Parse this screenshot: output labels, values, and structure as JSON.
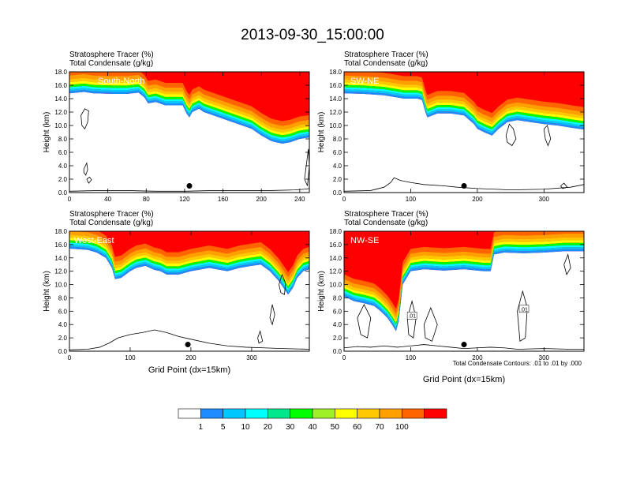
{
  "figure": {
    "title": "2013-09-30_15:00:00",
    "contour_note": "Total Condensate Contours: .01 to .01 by .000",
    "contour_label": ".01"
  },
  "colorbar": {
    "colors": [
      "#ffffff",
      "#1e8cff",
      "#00c8ff",
      "#00ffff",
      "#00e88c",
      "#00ff00",
      "#a0f028",
      "#ffff00",
      "#ffc800",
      "#ffa000",
      "#ff6400",
      "#ff0000"
    ],
    "labels": [
      "1",
      "5",
      "10",
      "20",
      "30",
      "40",
      "50",
      "60",
      "70",
      "100"
    ]
  },
  "chart_data": [
    {
      "type": "heatmap",
      "name": "South-North",
      "line1": "Stratosphere Tracer   (%)",
      "line2": "Total Condensate   (g/kg)",
      "ylabel": "Height (km)",
      "xlabel": "",
      "xlim": [
        0,
        250
      ],
      "ylim": [
        0,
        18
      ],
      "xticks": [
        "0",
        "40",
        "80",
        "120",
        "160",
        "200",
        "240"
      ],
      "yticks": [
        "0.0",
        "2.0",
        "4.0",
        "6.0",
        "8.0",
        "10.0",
        "12.0",
        "14.0",
        "16.0",
        "18.0"
      ],
      "marker_x": 125,
      "tracer_boundary": [
        [
          0,
          14.8
        ],
        [
          15,
          15.0
        ],
        [
          25,
          14.8
        ],
        [
          45,
          14.7
        ],
        [
          60,
          14.7
        ],
        [
          72,
          14.9
        ],
        [
          78,
          14.2
        ],
        [
          82,
          13.3
        ],
        [
          90,
          13.5
        ],
        [
          100,
          13.0
        ],
        [
          110,
          13.0
        ],
        [
          118,
          13.0
        ],
        [
          122,
          11.8
        ],
        [
          125,
          11.2
        ],
        [
          128,
          12.0
        ],
        [
          135,
          12.5
        ],
        [
          140,
          12.0
        ],
        [
          150,
          11.5
        ],
        [
          160,
          11.0
        ],
        [
          170,
          10.5
        ],
        [
          180,
          10.0
        ],
        [
          190,
          9.5
        ],
        [
          200,
          8.5
        ],
        [
          210,
          7.7
        ],
        [
          215,
          7.5
        ],
        [
          222,
          7.3
        ],
        [
          230,
          7.5
        ],
        [
          240,
          8.0
        ],
        [
          250,
          8.2
        ]
      ],
      "terrain": [
        [
          0,
          0.2
        ],
        [
          30,
          0.3
        ],
        [
          60,
          0.3
        ],
        [
          90,
          0.2
        ],
        [
          120,
          0.2
        ],
        [
          150,
          0.3
        ],
        [
          180,
          0.3
        ],
        [
          210,
          0.3
        ],
        [
          235,
          0.4
        ],
        [
          245,
          0.5
        ],
        [
          250,
          0.6
        ]
      ],
      "contours": [
        [
          [
            12,
            11.5
          ],
          [
            16,
            12.5
          ],
          [
            20,
            12.2
          ],
          [
            19,
            10.5
          ],
          [
            16,
            9.5
          ],
          [
            13,
            10.0
          ],
          [
            12,
            11.5
          ]
        ],
        [
          [
            15,
            3.5
          ],
          [
            18,
            4.4
          ],
          [
            19,
            3.4
          ],
          [
            17,
            2.6
          ],
          [
            15,
            3.0
          ],
          [
            15,
            3.5
          ]
        ],
        [
          [
            18,
            2.0
          ],
          [
            21,
            2.3
          ],
          [
            23,
            1.9
          ],
          [
            20,
            1.4
          ],
          [
            18,
            2.0
          ]
        ],
        [
          [
            245,
            2.0
          ],
          [
            249,
            6.5
          ],
          [
            250,
            4.0
          ],
          [
            248,
            1.0
          ],
          [
            245,
            2.0
          ]
        ]
      ]
    },
    {
      "type": "heatmap",
      "name": "SW-NE",
      "line1": "Stratosphere Tracer   (%)",
      "line2": "Total Condensate   (g/kg)",
      "ylabel": "Height (km)",
      "xlabel": "",
      "xlim": [
        0,
        360
      ],
      "ylim": [
        0,
        18
      ],
      "xticks": [
        "0",
        "100",
        "200",
        "300"
      ],
      "yticks": [
        "0.0",
        "2.0",
        "4.0",
        "6.0",
        "8.0",
        "10.0",
        "12.0",
        "14.0",
        "16.0",
        "18.0"
      ],
      "marker_x": 180,
      "tracer_boundary": [
        [
          0,
          14.8
        ],
        [
          30,
          14.7
        ],
        [
          60,
          14.5
        ],
        [
          90,
          14.0
        ],
        [
          110,
          14.0
        ],
        [
          117,
          13.8
        ],
        [
          122,
          12.0
        ],
        [
          125,
          11.2
        ],
        [
          140,
          11.8
        ],
        [
          160,
          11.8
        ],
        [
          180,
          11.5
        ],
        [
          195,
          10.2
        ],
        [
          200,
          9.5
        ],
        [
          210,
          9.0
        ],
        [
          222,
          8.5
        ],
        [
          232,
          9.5
        ],
        [
          245,
          10.5
        ],
        [
          260,
          10.8
        ],
        [
          280,
          10.5
        ],
        [
          300,
          10.2
        ],
        [
          320,
          10.0
        ],
        [
          345,
          9.6
        ],
        [
          360,
          9.4
        ]
      ],
      "terrain": [
        [
          0,
          0.2
        ],
        [
          40,
          0.3
        ],
        [
          60,
          0.8
        ],
        [
          70,
          1.5
        ],
        [
          75,
          2.2
        ],
        [
          85,
          1.8
        ],
        [
          100,
          1.5
        ],
        [
          120,
          1.2
        ],
        [
          150,
          1.0
        ],
        [
          170,
          0.8
        ],
        [
          200,
          0.6
        ],
        [
          250,
          0.4
        ],
        [
          300,
          0.5
        ],
        [
          340,
          0.8
        ],
        [
          360,
          1.2
        ]
      ],
      "contours": [
        [
          [
            243,
            8.5
          ],
          [
            248,
            10.2
          ],
          [
            254,
            9.5
          ],
          [
            258,
            8.0
          ],
          [
            252,
            7.0
          ],
          [
            245,
            7.5
          ],
          [
            243,
            8.5
          ]
        ],
        [
          [
            300,
            9.5
          ],
          [
            305,
            10.0
          ],
          [
            310,
            8.0
          ],
          [
            306,
            7.0
          ],
          [
            302,
            8.0
          ],
          [
            300,
            9.5
          ]
        ],
        [
          [
            325,
            1.0
          ],
          [
            330,
            1.4
          ],
          [
            335,
            0.8
          ],
          [
            328,
            0.6
          ],
          [
            325,
            1.0
          ]
        ]
      ]
    },
    {
      "type": "heatmap",
      "name": "West-East",
      "line1": "Stratosphere Tracer   (%)",
      "line2": "Total Condensate   (g/kg)",
      "ylabel": "Height (km)",
      "xlabel": "Grid Point (dx=15km)",
      "xlim": [
        0,
        395
      ],
      "ylim": [
        0,
        18
      ],
      "xticks": [
        "0",
        "100",
        "200",
        "300"
      ],
      "yticks": [
        "0.0",
        "2.0",
        "4.0",
        "6.0",
        "8.0",
        "10.0",
        "12.0",
        "14.0",
        "16.0",
        "18.0"
      ],
      "marker_x": 195,
      "tracer_boundary": [
        [
          0,
          15.4
        ],
        [
          30,
          15.2
        ],
        [
          45,
          14.8
        ],
        [
          60,
          14.0
        ],
        [
          70,
          12.5
        ],
        [
          75,
          10.8
        ],
        [
          85,
          11.0
        ],
        [
          100,
          12.0
        ],
        [
          110,
          12.5
        ],
        [
          125,
          12.8
        ],
        [
          140,
          12.2
        ],
        [
          150,
          12.0
        ],
        [
          160,
          11.5
        ],
        [
          180,
          11.5
        ],
        [
          200,
          12.0
        ],
        [
          230,
          12.5
        ],
        [
          260,
          12.0
        ],
        [
          280,
          12.5
        ],
        [
          300,
          12.8
        ],
        [
          315,
          13.0
        ],
        [
          330,
          12.0
        ],
        [
          345,
          10.5
        ],
        [
          360,
          8.5
        ],
        [
          368,
          9.5
        ],
        [
          375,
          11.0
        ],
        [
          385,
          12.0
        ],
        [
          395,
          12.3
        ]
      ],
      "terrain": [
        [
          0,
          0.2
        ],
        [
          30,
          0.3
        ],
        [
          50,
          0.6
        ],
        [
          65,
          1.2
        ],
        [
          80,
          2.0
        ],
        [
          100,
          2.5
        ],
        [
          120,
          2.8
        ],
        [
          140,
          3.2
        ],
        [
          160,
          2.8
        ],
        [
          180,
          2.2
        ],
        [
          200,
          1.8
        ],
        [
          230,
          1.2
        ],
        [
          260,
          0.8
        ],
        [
          290,
          0.6
        ],
        [
          320,
          0.5
        ],
        [
          350,
          0.4
        ],
        [
          395,
          0.3
        ]
      ],
      "contours": [
        [
          [
            345,
            10.0
          ],
          [
            350,
            11.5
          ],
          [
            356,
            10.2
          ],
          [
            354,
            8.5
          ],
          [
            348,
            8.8
          ],
          [
            345,
            10.0
          ]
        ],
        [
          [
            330,
            5.0
          ],
          [
            334,
            7.0
          ],
          [
            338,
            5.5
          ],
          [
            334,
            4.0
          ],
          [
            330,
            5.0
          ]
        ],
        [
          [
            310,
            2.0
          ],
          [
            314,
            3.0
          ],
          [
            318,
            1.5
          ],
          [
            312,
            1.2
          ],
          [
            310,
            2.0
          ]
        ]
      ]
    },
    {
      "type": "heatmap",
      "name": "NW-SE",
      "line1": "Stratosphere Tracer   (%)",
      "line2": "Total Condensate   (g/kg)",
      "ylabel": "Height (km)",
      "xlabel": "Grid Point (dx=15km)",
      "xlim": [
        0,
        360
      ],
      "ylim": [
        0,
        18
      ],
      "xticks": [
        "0",
        "100",
        "200",
        "300"
      ],
      "yticks": [
        "0.0",
        "2.0",
        "4.0",
        "6.0",
        "8.0",
        "10.0",
        "12.0",
        "14.0",
        "16.0",
        "18.0"
      ],
      "marker_x": 180,
      "tracer_boundary": [
        [
          0,
          8.2
        ],
        [
          15,
          7.5
        ],
        [
          30,
          7.2
        ],
        [
          45,
          6.8
        ],
        [
          55,
          6.0
        ],
        [
          65,
          5.0
        ],
        [
          72,
          4.0
        ],
        [
          78,
          3.0
        ],
        [
          82,
          4.5
        ],
        [
          88,
          10.0
        ],
        [
          100,
          12.0
        ],
        [
          120,
          12.3
        ],
        [
          150,
          12.1
        ],
        [
          180,
          12.3
        ],
        [
          200,
          12.1
        ],
        [
          210,
          12.0
        ],
        [
          220,
          12.0
        ],
        [
          225,
          14.5
        ],
        [
          240,
          14.8
        ],
        [
          270,
          14.7
        ],
        [
          300,
          14.8
        ],
        [
          330,
          15.0
        ],
        [
          360,
          15.0
        ]
      ],
      "terrain": [
        [
          0,
          0.5
        ],
        [
          20,
          0.7
        ],
        [
          40,
          0.6
        ],
        [
          60,
          0.8
        ],
        [
          80,
          0.6
        ],
        [
          100,
          0.8
        ],
        [
          120,
          1.0
        ],
        [
          140,
          0.8
        ],
        [
          160,
          0.6
        ],
        [
          180,
          0.4
        ],
        [
          200,
          0.5
        ],
        [
          220,
          0.6
        ],
        [
          240,
          0.5
        ],
        [
          260,
          0.3
        ],
        [
          300,
          0.4
        ],
        [
          340,
          0.3
        ],
        [
          360,
          0.3
        ]
      ],
      "contours": [
        [
          [
            20,
            5.0
          ],
          [
            30,
            7.0
          ],
          [
            40,
            5.0
          ],
          [
            35,
            2.0
          ],
          [
            25,
            2.5
          ],
          [
            20,
            5.0
          ]
        ],
        [
          [
            95,
            5.0
          ],
          [
            102,
            7.5
          ],
          [
            108,
            5.0
          ],
          [
            104,
            2.0
          ],
          [
            97,
            2.5
          ],
          [
            95,
            5.0
          ]
        ],
        [
          [
            120,
            4.0
          ],
          [
            130,
            6.5
          ],
          [
            140,
            4.0
          ],
          [
            132,
            1.5
          ],
          [
            122,
            2.0
          ],
          [
            120,
            4.0
          ]
        ],
        [
          [
            260,
            6.0
          ],
          [
            268,
            9.0
          ],
          [
            275,
            6.5
          ],
          [
            272,
            2.0
          ],
          [
            264,
            1.5
          ],
          [
            260,
            6.0
          ]
        ],
        [
          [
            330,
            13.0
          ],
          [
            336,
            14.5
          ],
          [
            340,
            12.5
          ],
          [
            334,
            11.5
          ],
          [
            330,
            13.0
          ]
        ]
      ]
    }
  ]
}
